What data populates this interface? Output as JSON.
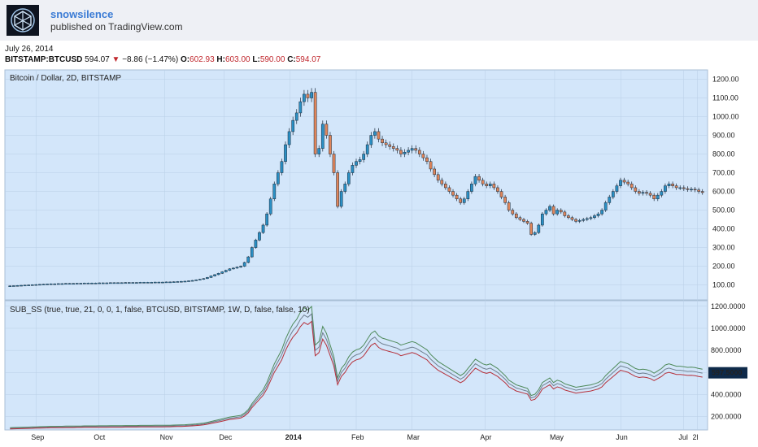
{
  "header": {
    "author": "snowsilence",
    "published": "published on TradingView.com"
  },
  "info": {
    "date": "July 26, 2014",
    "symbol": "BITSTAMP:BTCUSD",
    "last": "594.07",
    "change": "−8.86 (−1.47%)",
    "open_label": "O:",
    "open": "602.93",
    "high_label": "H:",
    "high": "603.00",
    "low_label": "L:",
    "low": "590.00",
    "close_label": "C:",
    "close": "594.07"
  },
  "colors": {
    "pane_bg": "#d3e6fa",
    "up": "#2a8fc4",
    "down": "#e0855a",
    "grid": "#b9cfe6",
    "line_green": "#4f8a5a",
    "line_red": "#b5303a",
    "line_gray": "#6f7f8f",
    "label_bg": "#0e2a4a"
  },
  "chart_data": [
    {
      "type": "candlestick",
      "title": "Bitcoin / Dollar, 2D, BITSTAMP",
      "ylim": [
        20,
        1250
      ],
      "yticks": [
        "100.00",
        "200.00",
        "300.00",
        "400.00",
        "500.00",
        "600.00",
        "700.00",
        "800.00",
        "900.00",
        "1000.00",
        "1100.00",
        "1200.00"
      ],
      "ytick_values": [
        100,
        200,
        300,
        400,
        500,
        600,
        700,
        800,
        900,
        1000,
        1100,
        1200
      ],
      "closes": [
        95,
        96,
        97,
        98,
        99,
        100,
        101,
        102,
        103,
        104,
        105,
        106,
        106,
        107,
        107,
        108,
        108,
        108,
        109,
        109,
        110,
        110,
        110,
        110,
        111,
        111,
        111,
        112,
        112,
        112,
        112,
        113,
        113,
        113,
        113,
        114,
        114,
        114,
        114,
        115,
        115,
        115,
        116,
        116,
        117,
        118,
        119,
        120,
        122,
        124,
        127,
        130,
        134,
        140,
        148,
        155,
        162,
        170,
        178,
        186,
        190,
        195,
        200,
        220,
        250,
        300,
        340,
        380,
        420,
        480,
        560,
        640,
        700,
        760,
        850,
        920,
        980,
        1020,
        1080,
        1120,
        1100,
        1130,
        800,
        830,
        960,
        900,
        800,
        700,
        520,
        600,
        640,
        700,
        740,
        760,
        770,
        800,
        850,
        900,
        920,
        880,
        860,
        850,
        840,
        830,
        820,
        800,
        810,
        820,
        830,
        820,
        800,
        780,
        760,
        720,
        690,
        660,
        640,
        620,
        600,
        580,
        560,
        540,
        560,
        600,
        640,
        680,
        660,
        640,
        630,
        640,
        620,
        600,
        570,
        540,
        500,
        480,
        460,
        450,
        440,
        430,
        370,
        380,
        420,
        480,
        500,
        520,
        480,
        500,
        490,
        470,
        460,
        450,
        440,
        445,
        450,
        455,
        460,
        470,
        480,
        500,
        540,
        570,
        600,
        630,
        660,
        650,
        640,
        620,
        600,
        590,
        595,
        590,
        580,
        560,
        580,
        600,
        630,
        640,
        630,
        620,
        620,
        615,
        610,
        612,
        608,
        600,
        594.07
      ]
    },
    {
      "type": "line",
      "title": "SUB_SS (true, true, 21, 0, 0, 1, false, BTCUSD, BITSTAMP, 1W, D, false, false, 10)",
      "ylim": [
        80,
        1250
      ],
      "yticks": [
        "200.0000",
        "400.0000",
        "600.0000",
        "800.0000",
        "1000.0000",
        "1200.0000"
      ],
      "ytick_values": [
        200,
        400,
        600,
        800,
        1000,
        1200
      ],
      "last_value_label": "597.5000",
      "last_value": 597.5,
      "xticks": [
        "Sep",
        "Oct",
        "Nov",
        "Dec",
        "2014",
        "Feb",
        "Mar",
        "Apr",
        "May",
        "Jun",
        "Jul",
        "2l"
      ]
    }
  ]
}
